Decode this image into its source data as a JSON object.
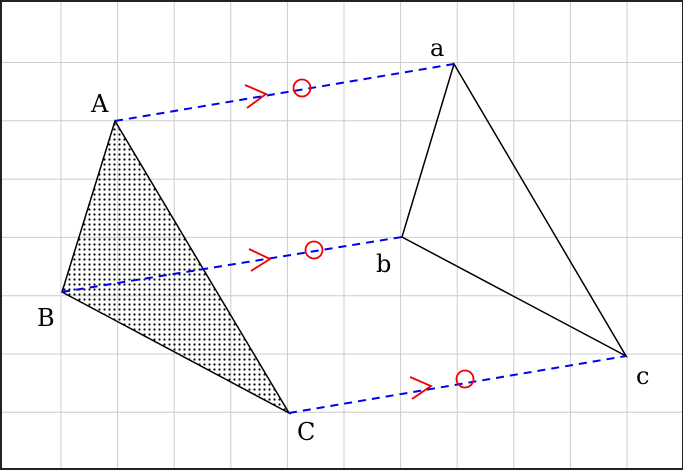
{
  "diagram": {
    "labels": {
      "A": "A",
      "B": "B",
      "C": "C",
      "a": "a",
      "b": "b",
      "c": "c"
    },
    "colors": {
      "grid": "#cccccc",
      "translation": "#0000ee",
      "marker": "#ee0000",
      "shape": "#000000"
    },
    "source_shape": "triangle ABC (dotted fill)",
    "image_shape": "triangle abc",
    "translation_lines": [
      {
        "from": "A",
        "to": "a",
        "style": "dashed",
        "marks": [
          "arrow",
          "circle"
        ]
      },
      {
        "from": "B",
        "to": "b",
        "style": "dashed",
        "marks": [
          "arrow",
          "circle"
        ]
      },
      {
        "from": "C",
        "to": "c",
        "style": "dashed",
        "marks": [
          "arrow",
          "circle"
        ]
      }
    ]
  }
}
